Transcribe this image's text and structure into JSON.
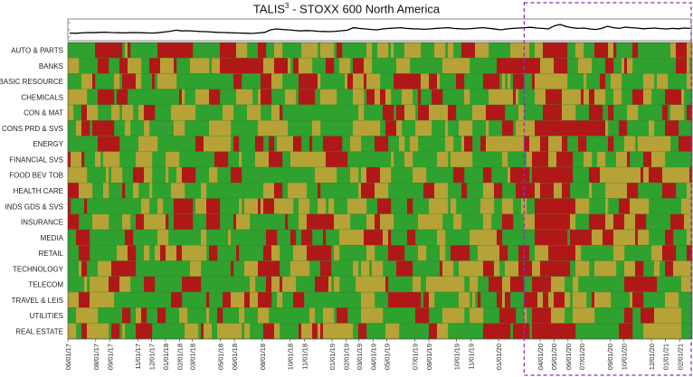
{
  "title": {
    "prefix": "TALIS",
    "superscript": "3",
    "suffix": " - STOXX 600 North America"
  },
  "colors": {
    "low": "#b01818",
    "mid": "#b6a236",
    "high": "#2ea12e",
    "highlight_box": "#8b2fbf",
    "index_line": "#000000"
  },
  "chart_data": [
    {
      "type": "line",
      "title": "",
      "description_role": "index-level-sparkline",
      "ylim_labels": [
        "",
        "",
        ""
      ],
      "values": [
        0.32,
        0.31,
        0.33,
        0.35,
        0.34,
        0.36,
        0.37,
        0.35,
        0.34,
        0.33,
        0.34,
        0.35,
        0.34,
        0.33,
        0.32,
        0.34,
        0.38,
        0.42,
        0.48,
        0.44,
        0.45,
        0.43,
        0.41,
        0.4,
        0.38,
        0.36,
        0.35,
        0.34,
        0.33,
        0.32,
        0.31,
        0.3,
        0.33,
        0.36,
        0.5,
        0.55,
        0.52,
        0.5,
        0.47,
        0.44,
        0.46,
        0.45,
        0.42,
        0.41,
        0.4,
        0.42,
        0.45,
        0.48,
        0.62,
        0.58,
        0.55,
        0.52,
        0.5,
        0.55,
        0.58,
        0.6,
        0.62,
        0.58,
        0.56,
        0.55,
        0.53,
        0.55,
        0.58,
        0.6,
        0.62,
        0.58,
        0.56,
        0.55,
        0.57,
        0.6,
        0.62,
        0.58,
        0.54,
        0.5,
        0.55,
        0.58,
        0.6,
        0.62,
        0.64,
        0.6,
        0.58,
        0.55,
        0.72,
        0.8,
        0.68,
        0.62,
        0.58,
        0.6,
        0.55,
        0.52,
        0.58,
        0.7,
        0.62,
        0.58,
        0.65,
        0.62,
        0.6,
        0.56,
        0.58,
        0.6,
        0.57,
        0.55,
        0.58,
        0.56,
        0.6,
        0.58
      ],
      "note": ""
    },
    {
      "type": "heatmap",
      "title": "",
      "rows": [
        "AUTO & PARTS",
        "BANKS",
        "BASIC RESOURCE",
        "CHEMICALS",
        "CON & MAT",
        "CONS PRD & SVS",
        "ENERGY",
        "FINANCIAL SVS",
        "FOOD BEV TOB",
        "HEALTH CARE",
        "INDS GDS & SVS",
        "INSURANCE",
        "MEDIA",
        "RETAIL",
        "TECHNOLOGY",
        "TELECOM",
        "TRAVEL & LEIS",
        "UTILITIES",
        "REAL ESTATE"
      ],
      "x_tick_labels": [
        "06/01/17",
        "08/01/17",
        "09/01/17",
        "11/01/17",
        "12/01/17",
        "01/01/18",
        "02/01/18",
        "03/01/18",
        "05/01/18",
        "06/01/18",
        "08/01/18",
        "10/01/18",
        "11/01/18",
        "01/01/19",
        "02/01/19",
        "03/01/19",
        "04/01/19",
        "05/01/19",
        "07/01/19",
        "08/01/19",
        "10/01/19",
        "11/01/19",
        "01/01/20",
        "04/01/20",
        "05/01/20",
        "06/01/20",
        "07/01/20",
        "09/01/20",
        "10/01/20",
        "12/01/20",
        "01/01/21",
        "02/01/21"
      ],
      "x_start": "06/01/17",
      "x_end": "02/28/21",
      "highlight_period": {
        "from": "03/01/20",
        "to": "02/28/21"
      },
      "color_scale": [
        "low",
        "mid",
        "high"
      ],
      "values_note": ""
    }
  ]
}
